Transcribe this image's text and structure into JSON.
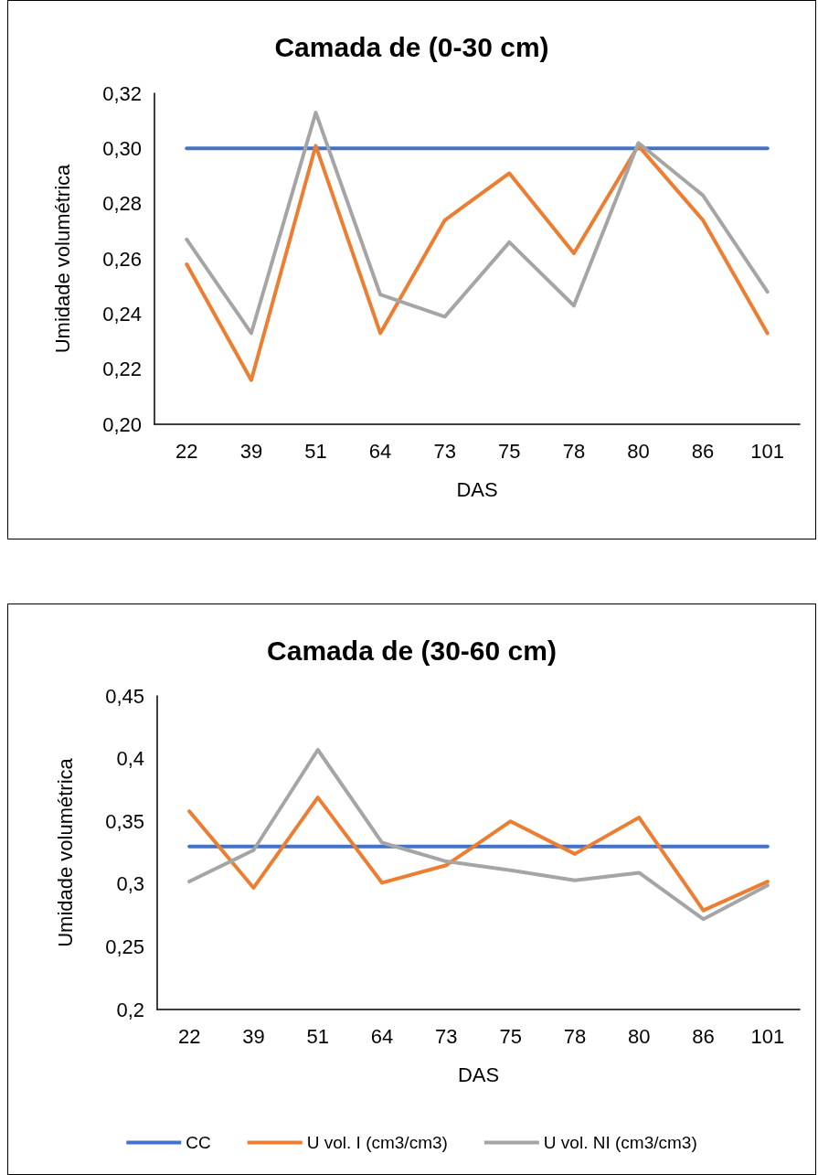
{
  "chart_data": [
    {
      "type": "line",
      "title": "Camada de (0-30 cm)",
      "xlabel": "DAS",
      "ylabel": "Umidade volumétrica",
      "categories": [
        "22",
        "39",
        "51",
        "64",
        "73",
        "75",
        "78",
        "80",
        "86",
        "101"
      ],
      "series": [
        {
          "color": "#4472c4",
          "values": [
            0.3,
            0.3,
            0.3,
            0.3,
            0.3,
            0.3,
            0.3,
            0.3,
            0.3,
            0.3
          ]
        },
        {
          "color": "#ed7d31",
          "values": [
            0.258,
            0.216,
            0.301,
            0.233,
            0.274,
            0.291,
            0.262,
            0.301,
            0.274,
            0.233
          ]
        },
        {
          "color": "#a5a5a5",
          "values": [
            0.267,
            0.233,
            0.313,
            0.247,
            0.239,
            0.266,
            0.243,
            0.302,
            0.283,
            0.248
          ]
        }
      ],
      "ylim": [
        0.2,
        0.32
      ],
      "yticks": [
        {
          "value": 0.2,
          "label": "0,20"
        },
        {
          "value": 0.22,
          "label": "0,22"
        },
        {
          "value": 0.24,
          "label": "0,24"
        },
        {
          "value": 0.26,
          "label": "0,26"
        },
        {
          "value": 0.28,
          "label": "0,28"
        },
        {
          "value": 0.3,
          "label": "0,30"
        },
        {
          "value": 0.32,
          "label": "0,32"
        }
      ],
      "grid": false,
      "legend": false,
      "marker": "none",
      "line_style": "solid"
    },
    {
      "type": "line",
      "title": "Camada de (30-60 cm)",
      "xlabel": "DAS",
      "ylabel": "Umidade volumétrica",
      "categories": [
        "22",
        "39",
        "51",
        "64",
        "73",
        "75",
        "78",
        "80",
        "86",
        "101"
      ],
      "series": [
        {
          "name": "CC",
          "color": "#4472c4",
          "values": [
            0.33,
            0.33,
            0.33,
            0.33,
            0.33,
            0.33,
            0.33,
            0.33,
            0.33,
            0.33
          ]
        },
        {
          "name": "U vol. I (cm3/cm3)",
          "color": "#ed7d31",
          "values": [
            0.358,
            0.297,
            0.369,
            0.301,
            0.315,
            0.35,
            0.324,
            0.353,
            0.279,
            0.302
          ]
        },
        {
          "name": "U vol. NI (cm3/cm3)",
          "color": "#a5a5a5",
          "values": [
            0.302,
            0.327,
            0.407,
            0.333,
            0.318,
            0.311,
            0.303,
            0.309,
            0.272,
            0.299
          ]
        }
      ],
      "ylim": [
        0.2,
        0.45
      ],
      "yticks": [
        {
          "value": 0.2,
          "label": "0,2"
        },
        {
          "value": 0.25,
          "label": "0,25"
        },
        {
          "value": 0.3,
          "label": "0,3"
        },
        {
          "value": 0.35,
          "label": "0,35"
        },
        {
          "value": 0.4,
          "label": "0,4"
        },
        {
          "value": 0.45,
          "label": "0,45"
        }
      ],
      "grid": false,
      "legend": "bottom",
      "marker": "none",
      "line_style": "solid"
    }
  ]
}
